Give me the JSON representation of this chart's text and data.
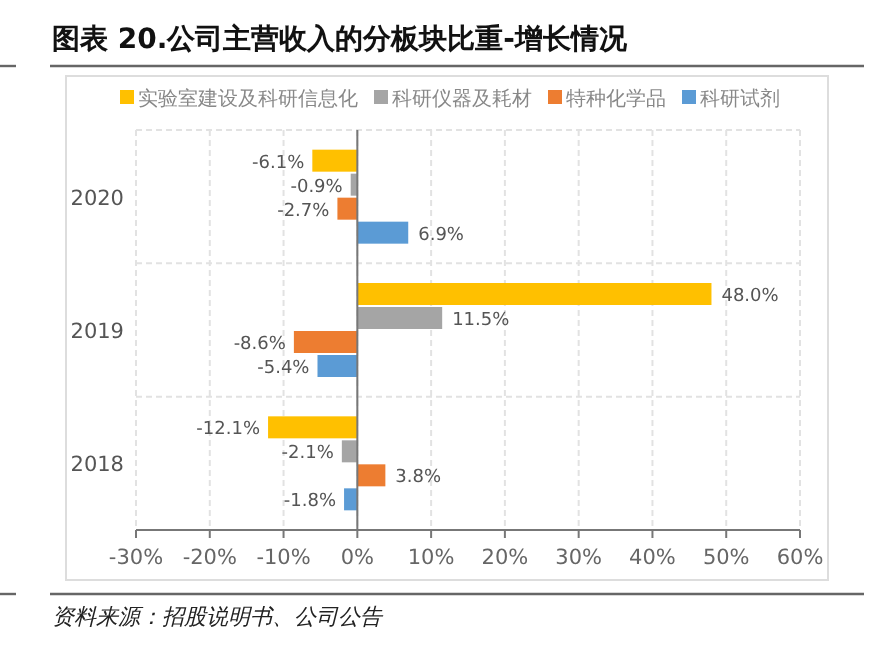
{
  "chart_data": {
    "type": "bar",
    "orientation": "horizontal",
    "title": "图表 20.公司主营收入的分板块比重-增长情况",
    "categories": [
      "2020",
      "2019",
      "2018"
    ],
    "series": [
      {
        "name": "实验室建设及科研信息化",
        "color": "#ffc000",
        "values": [
          -6.1,
          48.0,
          -12.1
        ],
        "value_labels": [
          "-6.1%",
          "48.0%",
          "-12.1%"
        ]
      },
      {
        "name": "科研仪器及耗材",
        "color": "#a5a5a5",
        "values": [
          -0.9,
          11.5,
          -2.1
        ],
        "value_labels": [
          "-0.9%",
          "11.5%",
          "-2.1%"
        ]
      },
      {
        "name": "特种化学品",
        "color": "#ed7d31",
        "values": [
          -2.7,
          -8.6,
          3.8
        ],
        "value_labels": [
          "-2.7%",
          "-8.6%",
          "3.8%"
        ]
      },
      {
        "name": "科研试剂",
        "color": "#5b9bd5",
        "values": [
          6.9,
          -5.4,
          -1.8
        ],
        "value_labels": [
          "6.9%",
          "-5.4%",
          "-1.8%"
        ]
      }
    ],
    "xlim": [
      -30,
      60
    ],
    "xticks": [
      {
        "value": -30,
        "label": "-30%"
      },
      {
        "value": -20,
        "label": "-20%"
      },
      {
        "value": -10,
        "label": "-10%"
      },
      {
        "value": 0,
        "label": "0%"
      },
      {
        "value": 10,
        "label": "10%"
      },
      {
        "value": 20,
        "label": "20%"
      },
      {
        "value": 30,
        "label": "30%"
      },
      {
        "value": 40,
        "label": "40%"
      },
      {
        "value": 50,
        "label": "50%"
      },
      {
        "value": 60,
        "label": "60%"
      }
    ],
    "grid": true,
    "legend": "top",
    "annotations": [
      "资料来源：招股说明书、公司公告"
    ]
  }
}
